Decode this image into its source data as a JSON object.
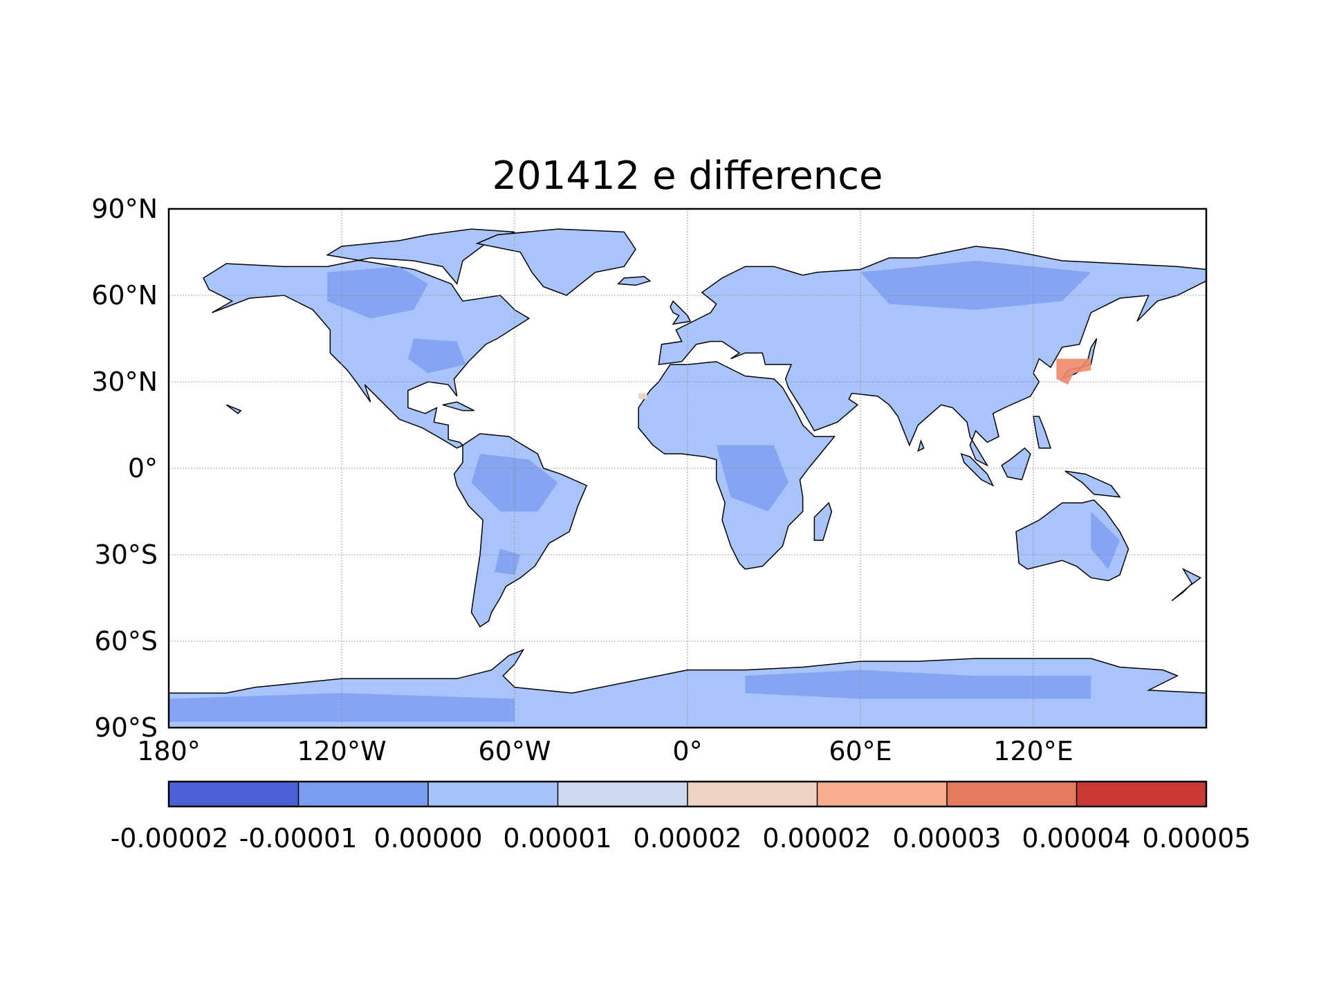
{
  "title": "201412 e difference",
  "map": {
    "projection": "PlateCarree",
    "lon_range": [
      -180,
      180
    ],
    "lat_range": [
      -90,
      90
    ],
    "grid": true,
    "land_fill_color": "#a8c4fa",
    "land_fill_color_darker": "#7f9ff0",
    "positive_anomaly_color": "#f08a6b",
    "coastline_color": "#000000",
    "ocean_color": "#ffffff"
  },
  "y_ticks": [
    "90°N",
    "60°N",
    "30°N",
    "0°",
    "30°S",
    "60°S",
    "90°S"
  ],
  "x_ticks": [
    "180°",
    "120°W",
    "60°W",
    "0°",
    "60°E",
    "120°E"
  ],
  "colorbar": {
    "labels": [
      "-0.00002",
      "-0.00001",
      "0.00000",
      "0.00001",
      "0.00002",
      "0.00002",
      "0.00003",
      "0.00004",
      "0.00005"
    ],
    "colors": [
      "#4a62d6",
      "#7b9df2",
      "#a6c2fb",
      "#ccd9ec",
      "#eed3c3",
      "#f5ad8e",
      "#e67a5d",
      "#c93a34"
    ]
  }
}
